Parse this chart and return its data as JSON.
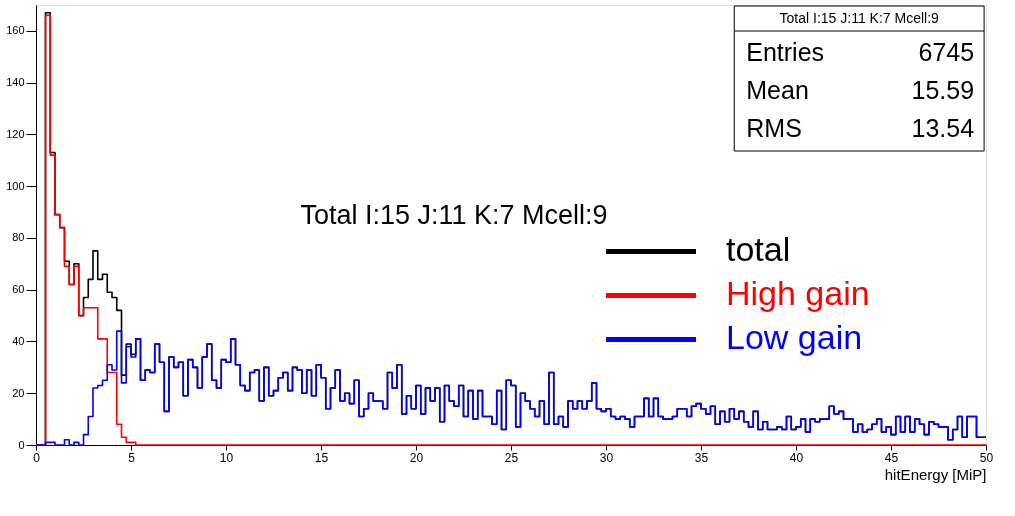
{
  "chart_data": {
    "type": "histogram",
    "title": "Total I:15 J:11 K:7 Mcell:9",
    "xlabel": "hitEnergy [MiP]",
    "xlim": [
      0,
      50
    ],
    "xticks": [
      0,
      5,
      10,
      15,
      20,
      25,
      30,
      35,
      40,
      45,
      50
    ],
    "ylim": [
      0,
      170
    ],
    "yticks": [
      0,
      20,
      40,
      60,
      80,
      100,
      120,
      140,
      160
    ],
    "grid": false,
    "legend": "right",
    "annotations": [
      "Total I:15 J:11 K:7 Mcell:9",
      "Entries",
      "6745",
      "Mean",
      "15.59",
      "RMS",
      "13.54"
    ],
    "bins": [
      0,
      0.25,
      0.5,
      0.75,
      1,
      1.25,
      1.5,
      1.75,
      2,
      2.25,
      2.5,
      2.75,
      3,
      3.25,
      3.5,
      3.75,
      4,
      4.25,
      4.5,
      4.75,
      5,
      5.25,
      5.5,
      5.75,
      6,
      6.25,
      6.5,
      6.75,
      7,
      7.25,
      7.5,
      7.75,
      8,
      8.25,
      8.5,
      8.75,
      9,
      9.25,
      9.5,
      9.75,
      10,
      10.25,
      10.5,
      10.75,
      11,
      11.25,
      11.5,
      11.75,
      12,
      12.25,
      12.5,
      12.75,
      13,
      13.25,
      13.5,
      13.75,
      14,
      14.25,
      14.5,
      14.75,
      15,
      15.25,
      15.5,
      15.75,
      16,
      16.25,
      16.5,
      16.75,
      17,
      17.25,
      17.5,
      17.75,
      18,
      18.25,
      18.5,
      18.75,
      19,
      19.25,
      19.5,
      19.75,
      20,
      20.25,
      20.5,
      20.75,
      21,
      21.25,
      21.5,
      21.75,
      22,
      22.25,
      22.5,
      22.75,
      23,
      23.25,
      23.5,
      23.75,
      24,
      24.25,
      24.5,
      24.75,
      25,
      25.25,
      25.5,
      25.75,
      26,
      26.25,
      26.5,
      26.75,
      27,
      27.25,
      27.5,
      27.75,
      28,
      28.25,
      28.5,
      28.75,
      29,
      29.25,
      29.5,
      29.75,
      30,
      30.25,
      30.5,
      30.75,
      31,
      31.25,
      31.5,
      31.75,
      32,
      32.25,
      32.5,
      32.75,
      33,
      33.25,
      33.5,
      33.75,
      34,
      34.25,
      34.5,
      34.75,
      35,
      35.25,
      35.5,
      35.75,
      36,
      36.25,
      36.5,
      36.75,
      37,
      37.25,
      37.5,
      37.75,
      38,
      38.25,
      38.5,
      38.75,
      39,
      39.25,
      39.5,
      39.75,
      40,
      40.25,
      40.5,
      40.75,
      41,
      41.25,
      41.5,
      41.75,
      42,
      42.25,
      42.5,
      42.75,
      43,
      43.25,
      43.5,
      43.75,
      44,
      44.25,
      44.5,
      44.75,
      45,
      45.25,
      45.5,
      45.75,
      46,
      46.25,
      46.5,
      46.75,
      47,
      47.25,
      47.5,
      47.75,
      48,
      48.25,
      48.5,
      48.75,
      49,
      49.25,
      49.5,
      49.75,
      50
    ],
    "series": [
      {
        "name": "total",
        "color": "#000000",
        "values": [
          0,
          0,
          167,
          113,
          89,
          84,
          71,
          62,
          70,
          50,
          57,
          64,
          75,
          64,
          66,
          59,
          57,
          52,
          27,
          39,
          35,
          41,
          25,
          29,
          28,
          39,
          32,
          13,
          34,
          30,
          32,
          19,
          33,
          30,
          22,
          34,
          39,
          25,
          22,
          33,
          32,
          41,
          31,
          23,
          21,
          28,
          29,
          17,
          30,
          19,
          21,
          26,
          28,
          21,
          30,
          29,
          20,
          29,
          19,
          31,
          26,
          14,
          22,
          29,
          17,
          20,
          16,
          25,
          11,
          14,
          20,
          17,
          17,
          14,
          28,
          22,
          31,
          12,
          19,
          14,
          23,
          12,
          22,
          17,
          22,
          9,
          23,
          17,
          15,
          23,
          11,
          21,
          10,
          21,
          11,
          11,
          8,
          21,
          6,
          25,
          23,
          7,
          20,
          17,
          14,
          11,
          17,
          8,
          28,
          8,
          11,
          7,
          17,
          14,
          17,
          14,
          17,
          24,
          14,
          13,
          14,
          11,
          10,
          11,
          10,
          7,
          11,
          11,
          18,
          11,
          18,
          11,
          10,
          10,
          11,
          14,
          14,
          11,
          15,
          16,
          14,
          12,
          15,
          8,
          13,
          9,
          14,
          10,
          13,
          9,
          7,
          13,
          6,
          9,
          6,
          6,
          7,
          6,
          11,
          6,
          7,
          10,
          5,
          10,
          9,
          10,
          10,
          15,
          12,
          13,
          10,
          10,
          5,
          8,
          5,
          6,
          8,
          10,
          5,
          7,
          4,
          11,
          5,
          11,
          5,
          10,
          8,
          4,
          9,
          8,
          7,
          7,
          2,
          6,
          11,
          3,
          11,
          11,
          3,
          3
        ]
      },
      {
        "name": "High gain",
        "color": "#ff0000",
        "values": [
          0,
          0,
          166,
          112,
          89,
          84,
          69,
          62,
          69,
          50,
          53,
          53,
          53,
          41,
          41,
          28,
          28,
          8,
          3,
          1,
          1,
          0,
          0,
          0,
          0,
          0,
          0,
          0,
          0,
          0,
          0,
          0,
          0,
          0,
          0,
          0,
          0,
          0,
          0,
          0,
          0,
          0,
          0,
          0,
          0,
          0,
          0,
          0,
          0,
          0,
          0,
          0,
          0,
          0,
          0,
          0,
          0,
          0,
          0,
          0,
          0,
          0,
          0,
          0,
          0,
          0,
          0,
          0,
          0,
          0,
          0,
          0,
          0,
          0,
          0,
          0,
          0,
          0,
          0,
          0,
          0,
          0,
          0,
          0,
          0,
          0,
          0,
          0,
          0,
          0,
          0,
          0,
          0,
          0,
          0,
          0,
          0,
          0,
          0,
          0,
          0,
          0,
          0,
          0,
          0,
          0,
          0,
          0,
          0,
          0,
          0,
          0,
          0,
          0,
          0,
          0,
          0,
          0,
          0,
          0,
          0,
          0,
          0,
          0,
          0,
          0,
          0,
          0,
          0,
          0,
          0,
          0,
          0,
          0,
          0,
          0,
          0,
          0,
          0,
          0,
          0,
          0,
          0,
          0,
          0,
          0,
          0,
          0,
          0,
          0,
          0,
          0,
          0,
          0,
          0,
          0,
          0,
          0,
          0,
          0,
          0,
          0,
          0,
          0,
          0,
          0,
          0,
          0,
          0,
          0,
          0,
          0,
          0,
          0,
          0,
          0,
          0,
          0,
          0,
          0,
          0,
          0,
          0,
          0,
          0,
          0,
          0,
          0,
          0,
          0,
          0,
          0,
          0,
          0,
          0,
          0,
          0,
          0,
          0,
          0
        ]
      },
      {
        "name": "Low gain",
        "color": "#0000ff",
        "values": [
          0,
          0,
          1,
          1,
          0,
          0,
          2,
          0,
          1,
          0,
          4,
          11,
          22,
          23,
          25,
          31,
          29,
          44,
          24,
          38,
          34,
          41,
          25,
          29,
          28,
          39,
          32,
          13,
          34,
          30,
          32,
          19,
          33,
          30,
          22,
          34,
          39,
          25,
          22,
          33,
          32,
          41,
          31,
          23,
          21,
          28,
          29,
          17,
          30,
          19,
          21,
          26,
          28,
          21,
          30,
          29,
          20,
          29,
          19,
          31,
          26,
          14,
          22,
          29,
          17,
          20,
          16,
          25,
          11,
          14,
          20,
          17,
          17,
          14,
          28,
          22,
          31,
          12,
          19,
          14,
          23,
          12,
          22,
          17,
          22,
          9,
          23,
          17,
          15,
          23,
          11,
          21,
          10,
          21,
          11,
          11,
          8,
          21,
          6,
          25,
          23,
          7,
          20,
          17,
          14,
          11,
          17,
          8,
          28,
          8,
          11,
          7,
          17,
          14,
          17,
          14,
          17,
          24,
          14,
          13,
          14,
          11,
          10,
          11,
          10,
          7,
          11,
          11,
          18,
          11,
          18,
          11,
          10,
          10,
          11,
          14,
          14,
          11,
          15,
          16,
          14,
          12,
          15,
          8,
          13,
          9,
          14,
          10,
          13,
          9,
          7,
          13,
          6,
          9,
          6,
          6,
          7,
          6,
          11,
          6,
          7,
          10,
          5,
          10,
          9,
          10,
          10,
          15,
          12,
          13,
          10,
          10,
          5,
          8,
          5,
          6,
          8,
          10,
          5,
          7,
          4,
          11,
          5,
          11,
          5,
          10,
          8,
          4,
          9,
          8,
          7,
          7,
          2,
          6,
          11,
          3,
          11,
          11,
          3,
          3
        ]
      }
    ]
  }
}
